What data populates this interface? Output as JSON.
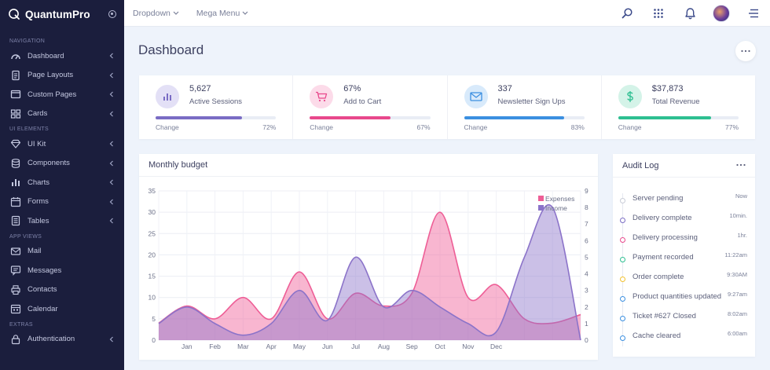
{
  "brand": {
    "name": "QuantumPro"
  },
  "topbar": {
    "menu": [
      {
        "label": "Dropdown"
      },
      {
        "label": "Mega Menu"
      }
    ]
  },
  "sidebar": {
    "sections": [
      {
        "title": "NAVIGATION",
        "items": [
          {
            "label": "Dashboard",
            "icon": "gauge-icon"
          },
          {
            "label": "Page Layouts",
            "icon": "document-icon"
          },
          {
            "label": "Custom Pages",
            "icon": "window-icon"
          },
          {
            "label": "Cards",
            "icon": "grid-icon"
          }
        ]
      },
      {
        "title": "UI ELEMENTS",
        "items": [
          {
            "label": "UI Kit",
            "icon": "diamond-icon"
          },
          {
            "label": "Components",
            "icon": "database-icon"
          },
          {
            "label": "Charts",
            "icon": "bar-chart-icon"
          },
          {
            "label": "Forms",
            "icon": "calendar-form-icon"
          },
          {
            "label": "Tables",
            "icon": "list-document-icon"
          }
        ]
      },
      {
        "title": "APP VIEWS",
        "items": [
          {
            "label": "Mail",
            "icon": "mail-icon"
          },
          {
            "label": "Messages",
            "icon": "chat-icon"
          },
          {
            "label": "Contacts",
            "icon": "printer-icon"
          },
          {
            "label": "Calendar",
            "icon": "calendar-icon"
          }
        ]
      },
      {
        "title": "EXTRAS",
        "items": [
          {
            "label": "Authentication",
            "icon": "lock-icon"
          }
        ]
      }
    ]
  },
  "page": {
    "title": "Dashboard"
  },
  "stats": [
    {
      "value": "5,627",
      "label": "Active Sessions",
      "change_label": "Change",
      "percent": "72%",
      "progress": 0.72,
      "color": "#7a6cc4",
      "circle": "#e3e0f6",
      "icon": "bar-chart-icon"
    },
    {
      "value": "67%",
      "label": "Add to Cart",
      "change_label": "Change",
      "percent": "67%",
      "progress": 0.67,
      "color": "#e8488c",
      "circle": "#fcdbe9",
      "icon": "cart-icon"
    },
    {
      "value": "337",
      "label": "Newsletter Sign Ups",
      "change_label": "Change",
      "percent": "83%",
      "progress": 0.83,
      "color": "#3b8fe0",
      "circle": "#d8eafb",
      "icon": "mail-icon"
    },
    {
      "value": "$37,873",
      "label": "Total Revenue",
      "change_label": "Change",
      "percent": "77%",
      "progress": 0.77,
      "color": "#2ebf91",
      "circle": "#d4f3e8",
      "icon": "dollar-icon"
    }
  ],
  "budget": {
    "title": "Monthly budget",
    "chart_data": {
      "type": "area",
      "title": "Monthly budget",
      "categories": [
        "Jan",
        "Feb",
        "Mar",
        "Apr",
        "May",
        "Jun",
        "Jul",
        "Aug",
        "Sep",
        "Oct",
        "Nov",
        "Dec"
      ],
      "x_labeled_positions": [
        1,
        2,
        3,
        4,
        5,
        6,
        7,
        8,
        9,
        10,
        11,
        12
      ],
      "ylim_left": [
        0,
        35
      ],
      "yticks_left": [
        0,
        5,
        10,
        15,
        20,
        25,
        30,
        35
      ],
      "ylim_right": [
        0,
        9
      ],
      "yticks_right": [
        0,
        1,
        2,
        3,
        4,
        5,
        6,
        7,
        8,
        9
      ],
      "legend_position": "top-right",
      "grid": true,
      "series": [
        {
          "name": "Expenses",
          "axis": "left",
          "color": "#ee5e96",
          "x": [
            0,
            1,
            2,
            3,
            4,
            5,
            6,
            7,
            8,
            9,
            10,
            11,
            12,
            13,
            14,
            15
          ],
          "values": [
            4,
            8,
            5,
            10,
            5,
            16,
            5,
            11,
            8,
            11,
            30,
            10,
            13,
            5,
            4,
            6
          ]
        },
        {
          "name": "Income",
          "axis": "right",
          "color": "#8b73c9",
          "x": [
            0,
            1,
            2,
            3,
            4,
            5,
            6,
            7,
            8,
            9,
            10,
            11,
            12,
            13,
            14,
            15
          ],
          "values": [
            1,
            2,
            1,
            0.3,
            1,
            3,
            1.2,
            5,
            2,
            3,
            2,
            1,
            0.5,
            5,
            8,
            0
          ]
        }
      ]
    }
  },
  "audit": {
    "title": "Audit Log",
    "items": [
      {
        "text": "Server pending",
        "time": "Now",
        "color": "#c9cdd8"
      },
      {
        "text": "Delivery complete",
        "time": "10min.",
        "color": "#7a6cc4"
      },
      {
        "text": "Delivery processing",
        "time": "1hr.",
        "color": "#e8488c"
      },
      {
        "text": "Payment recorded",
        "time": "11:22am",
        "color": "#2ebf91"
      },
      {
        "text": "Order complete",
        "time": "9:30AM",
        "color": "#f2c12e"
      },
      {
        "text": "Product quantities updated",
        "time": "9:27am",
        "color": "#3b8fe0"
      },
      {
        "text": "Ticket #627 Closed",
        "time": "8:02am",
        "color": "#3b8fe0"
      },
      {
        "text": "Cache cleared",
        "time": "6:00am",
        "color": "#3b8fe0"
      }
    ]
  }
}
